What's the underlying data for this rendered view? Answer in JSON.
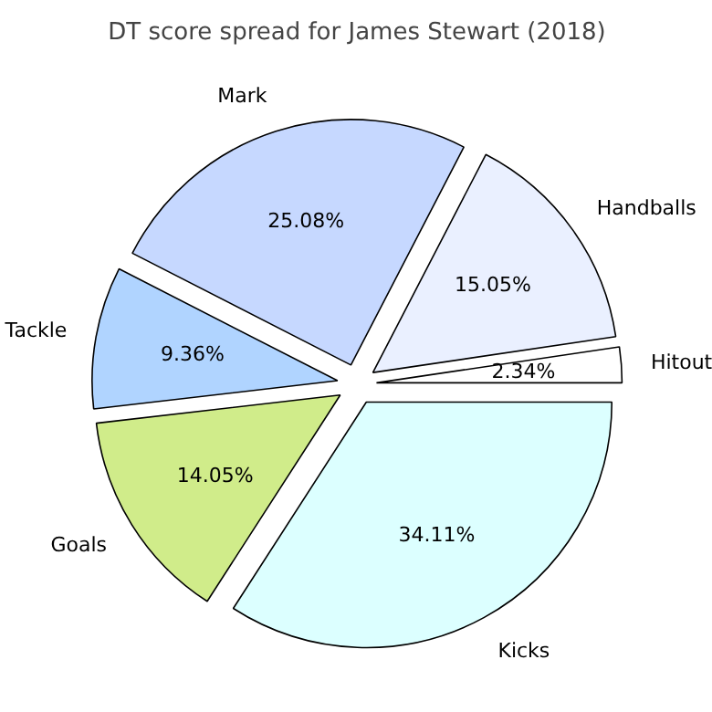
{
  "chart_data": {
    "type": "pie",
    "title": "DT score spread for James Stewart (2018)",
    "categories": [
      "Hitout",
      "Handballs",
      "Mark",
      "Tackle",
      "Goals",
      "Kicks"
    ],
    "values": [
      2.34,
      15.05,
      25.08,
      9.36,
      14.05,
      34.11
    ],
    "value_labels": [
      "2.34%",
      "15.05%",
      "25.08%",
      "9.36%",
      "14.05%",
      "34.11%"
    ],
    "colors": [
      "#ffffff",
      "#eaf0ff",
      "#c6d8ff",
      "#b0d4ff",
      "#d0ec8a",
      "#dcffff"
    ]
  }
}
